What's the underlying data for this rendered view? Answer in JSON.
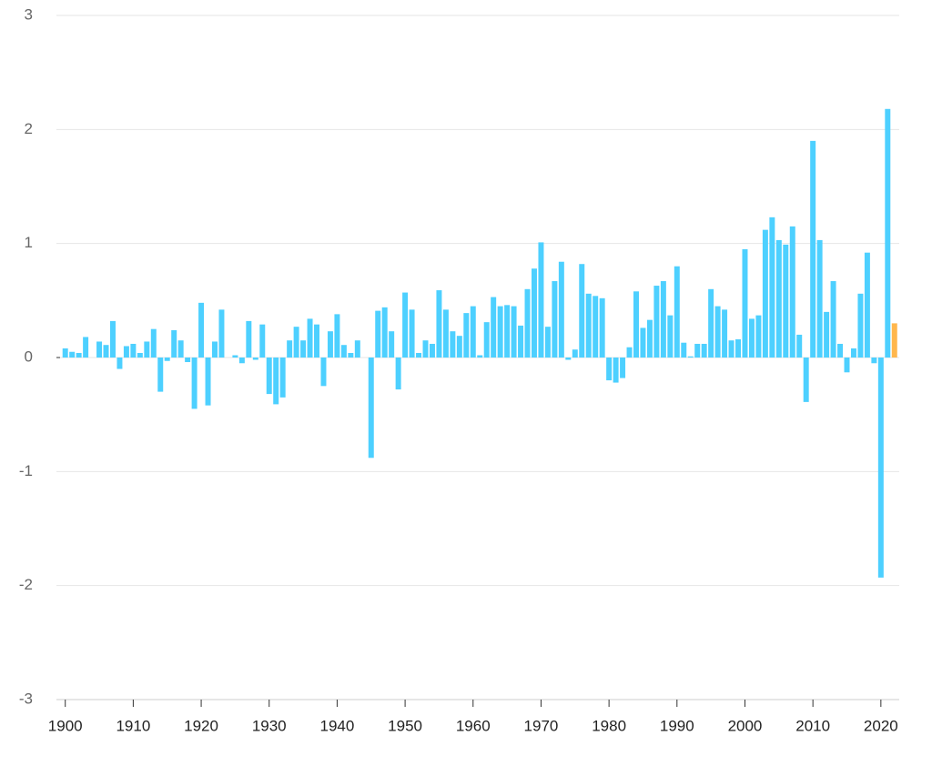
{
  "chart_data": {
    "type": "bar",
    "x": [
      1900,
      1901,
      1902,
      1903,
      1904,
      1905,
      1906,
      1907,
      1908,
      1909,
      1910,
      1911,
      1912,
      1913,
      1914,
      1915,
      1916,
      1917,
      1918,
      1919,
      1920,
      1921,
      1922,
      1923,
      1924,
      1925,
      1926,
      1927,
      1928,
      1929,
      1930,
      1931,
      1932,
      1933,
      1934,
      1935,
      1936,
      1937,
      1938,
      1939,
      1940,
      1941,
      1942,
      1943,
      1944,
      1945,
      1946,
      1947,
      1948,
      1949,
      1950,
      1951,
      1952,
      1953,
      1954,
      1955,
      1956,
      1957,
      1958,
      1959,
      1960,
      1961,
      1962,
      1963,
      1964,
      1965,
      1966,
      1967,
      1968,
      1969,
      1970,
      1971,
      1972,
      1973,
      1974,
      1975,
      1976,
      1977,
      1978,
      1979,
      1980,
      1981,
      1982,
      1983,
      1984,
      1985,
      1986,
      1987,
      1988,
      1989,
      1990,
      1991,
      1992,
      1993,
      1994,
      1995,
      1996,
      1997,
      1998,
      1999,
      2000,
      2001,
      2002,
      2003,
      2004,
      2005,
      2006,
      2007,
      2008,
      2009,
      2010,
      2011,
      2012,
      2013,
      2014,
      2015,
      2016,
      2017,
      2018,
      2019,
      2020,
      2021,
      2022
    ],
    "values": [
      0.08,
      0.05,
      0.04,
      0.18,
      0.0,
      0.14,
      0.11,
      0.32,
      -0.1,
      0.1,
      0.12,
      0.04,
      0.14,
      0.25,
      -0.3,
      -0.03,
      0.24,
      0.15,
      -0.04,
      -0.45,
      0.48,
      -0.42,
      0.14,
      0.42,
      0.0,
      0.02,
      -0.05,
      0.32,
      -0.02,
      0.29,
      -0.32,
      -0.41,
      -0.35,
      0.15,
      0.27,
      0.15,
      0.34,
      0.29,
      -0.25,
      0.23,
      0.38,
      0.11,
      0.04,
      0.15,
      0.0,
      -0.88,
      0.41,
      0.44,
      0.23,
      -0.28,
      0.57,
      0.42,
      0.04,
      0.15,
      0.12,
      0.59,
      0.42,
      0.23,
      0.19,
      0.39,
      0.45,
      0.02,
      0.31,
      0.53,
      0.45,
      0.46,
      0.45,
      0.28,
      0.6,
      0.78,
      1.01,
      0.27,
      0.67,
      0.84,
      -0.02,
      0.07,
      0.82,
      0.56,
      0.54,
      0.52,
      -0.2,
      -0.22,
      -0.18,
      0.09,
      0.58,
      0.26,
      0.33,
      0.63,
      0.67,
      0.37,
      0.8,
      0.13,
      0.01,
      0.12,
      0.12,
      0.6,
      0.45,
      0.42,
      0.15,
      0.16,
      0.95,
      0.34,
      0.37,
      1.12,
      1.23,
      1.03,
      0.99,
      1.15,
      0.2,
      -0.39,
      1.9,
      1.03,
      0.4,
      0.67,
      0.12,
      -0.13,
      0.08,
      0.56,
      0.92,
      -0.05,
      -1.93,
      2.18,
      0.3
    ],
    "colors": [
      "#4dd0ff",
      "#4dd0ff",
      "#4dd0ff",
      "#4dd0ff",
      "#4dd0ff",
      "#4dd0ff",
      "#4dd0ff",
      "#4dd0ff",
      "#4dd0ff",
      "#4dd0ff",
      "#4dd0ff",
      "#4dd0ff",
      "#4dd0ff",
      "#4dd0ff",
      "#4dd0ff",
      "#4dd0ff",
      "#4dd0ff",
      "#4dd0ff",
      "#4dd0ff",
      "#4dd0ff",
      "#4dd0ff",
      "#4dd0ff",
      "#4dd0ff",
      "#4dd0ff",
      "#4dd0ff",
      "#4dd0ff",
      "#4dd0ff",
      "#4dd0ff",
      "#4dd0ff",
      "#4dd0ff",
      "#4dd0ff",
      "#4dd0ff",
      "#4dd0ff",
      "#4dd0ff",
      "#4dd0ff",
      "#4dd0ff",
      "#4dd0ff",
      "#4dd0ff",
      "#4dd0ff",
      "#4dd0ff",
      "#4dd0ff",
      "#4dd0ff",
      "#4dd0ff",
      "#4dd0ff",
      "#4dd0ff",
      "#4dd0ff",
      "#4dd0ff",
      "#4dd0ff",
      "#4dd0ff",
      "#4dd0ff",
      "#4dd0ff",
      "#4dd0ff",
      "#4dd0ff",
      "#4dd0ff",
      "#4dd0ff",
      "#4dd0ff",
      "#4dd0ff",
      "#4dd0ff",
      "#4dd0ff",
      "#4dd0ff",
      "#4dd0ff",
      "#4dd0ff",
      "#4dd0ff",
      "#4dd0ff",
      "#4dd0ff",
      "#4dd0ff",
      "#4dd0ff",
      "#4dd0ff",
      "#4dd0ff",
      "#4dd0ff",
      "#4dd0ff",
      "#4dd0ff",
      "#4dd0ff",
      "#4dd0ff",
      "#4dd0ff",
      "#4dd0ff",
      "#4dd0ff",
      "#4dd0ff",
      "#4dd0ff",
      "#4dd0ff",
      "#4dd0ff",
      "#4dd0ff",
      "#4dd0ff",
      "#4dd0ff",
      "#4dd0ff",
      "#4dd0ff",
      "#4dd0ff",
      "#4dd0ff",
      "#4dd0ff",
      "#4dd0ff",
      "#4dd0ff",
      "#4dd0ff",
      "#4dd0ff",
      "#4dd0ff",
      "#4dd0ff",
      "#4dd0ff",
      "#4dd0ff",
      "#4dd0ff",
      "#4dd0ff",
      "#4dd0ff",
      "#4dd0ff",
      "#4dd0ff",
      "#4dd0ff",
      "#4dd0ff",
      "#4dd0ff",
      "#4dd0ff",
      "#4dd0ff",
      "#4dd0ff",
      "#4dd0ff",
      "#4dd0ff",
      "#4dd0ff",
      "#4dd0ff",
      "#4dd0ff",
      "#4dd0ff",
      "#4dd0ff",
      "#4dd0ff",
      "#4dd0ff",
      "#4dd0ff",
      "#4dd0ff",
      "#4dd0ff",
      "#4dd0ff",
      "#4dd0ff",
      "#ffb74d"
    ],
    "xlim": [
      1898.7,
      2022.7
    ],
    "xticks": [
      1900,
      1910,
      1920,
      1930,
      1940,
      1950,
      1960,
      1970,
      1980,
      1990,
      2000,
      2010,
      2020
    ],
    "ylim": [
      -3,
      3
    ],
    "yticks": [
      -3,
      -2,
      -1,
      0,
      1,
      2,
      3
    ],
    "grid": true
  }
}
